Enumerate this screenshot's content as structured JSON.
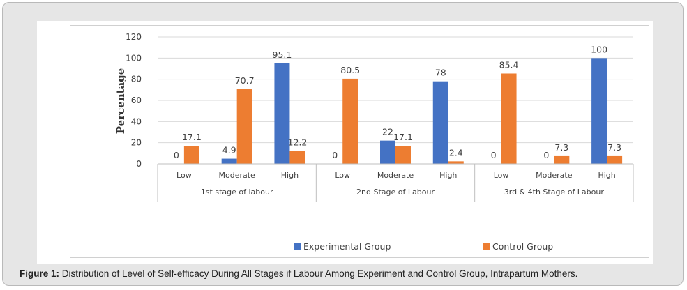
{
  "figure": {
    "caption_label": "Figure 1:",
    "caption_text": " Distribution of Level of Self-efficacy During All Stages if Labour Among Experiment and Control Group, Intrapartum Mothers."
  },
  "chart_data": {
    "type": "bar",
    "ylabel": "Percentage",
    "xlabel": "",
    "ylim": [
      0,
      120
    ],
    "yticks": [
      0,
      20,
      40,
      60,
      80,
      100,
      120
    ],
    "grid": true,
    "legend_position": "bottom",
    "colors": {
      "Experimental Group": "#4472c4",
      "Control Group": "#ed7d31",
      "grid": "#d9d9d9",
      "text": "#404040"
    },
    "groups": [
      {
        "label": "1st stage of labour",
        "categories": [
          "Low",
          "Moderate",
          "High"
        ]
      },
      {
        "label": "2nd Stage of Labour",
        "categories": [
          "Low",
          "Moderate",
          "High"
        ]
      },
      {
        "label": "3rd & 4th Stage of Labour",
        "categories": [
          "Low",
          "Moderate",
          "High"
        ]
      }
    ],
    "series": [
      {
        "name": "Experimental Group",
        "values": [
          0,
          4.9,
          95.1,
          0,
          22,
          78,
          0,
          0,
          100
        ],
        "labels": [
          "0",
          "4.9",
          "95.1",
          "0",
          "22",
          "78",
          "0",
          "0",
          "100"
        ]
      },
      {
        "name": "Control Group",
        "values": [
          17.1,
          70.7,
          12.2,
          80.5,
          17.1,
          2.4,
          85.4,
          7.3,
          7.3
        ],
        "labels": [
          "17.1",
          "70.7",
          "12.2",
          "80.5",
          "17.1",
          "2.4",
          "85.4",
          "7.3",
          "7.3"
        ]
      }
    ]
  }
}
